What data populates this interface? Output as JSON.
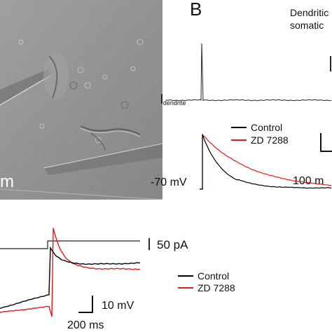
{
  "panel_b": {
    "letter": "B",
    "title_line1": "Dendritic",
    "title_line2": "somatic",
    "i_dendrite_label": "I",
    "i_dendrite_sub": "dendrite",
    "legend": [
      {
        "name": "Control",
        "color": "#000000"
      },
      {
        "name": "ZD 7288",
        "color": "#e31a1c"
      }
    ],
    "resting_potential_label": "-70 mV",
    "time_scale_label": "100 m"
  },
  "panel_a": {
    "micro_scale_label": "m"
  },
  "panel_c": {
    "current_scale_label": "50 pA",
    "legend": [
      {
        "name": "Control",
        "color": "#000000"
      },
      {
        "name": "ZD 7288",
        "color": "#e31a1c"
      }
    ],
    "voltage_scale_label": "10 mV",
    "time_scale_label": "200 ms"
  },
  "colors": {
    "control": "#000000",
    "zd7288": "#e31a1c",
    "micrograph": "#8c8c8c"
  }
}
